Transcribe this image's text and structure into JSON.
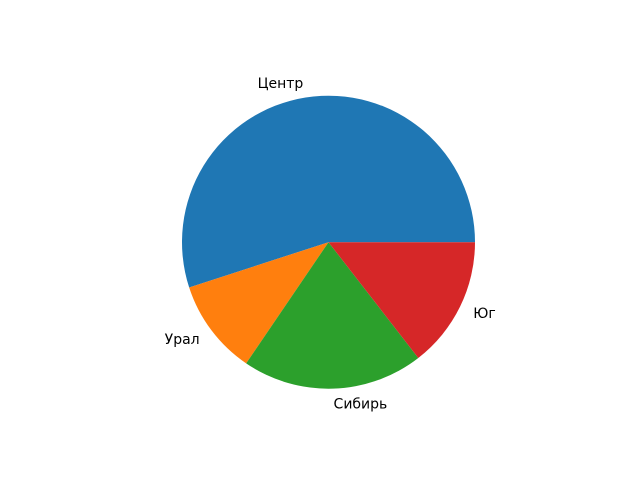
{
  "figure": {
    "background": "#ffffff"
  },
  "chart_data": {
    "type": "pie",
    "labels": [
      "Центр",
      "Урал",
      "Сибирь",
      "Юг"
    ],
    "values": [
      55,
      10.5,
      20,
      14.5
    ],
    "colors": [
      "#1f77b4",
      "#ff7f0e",
      "#2ca02c",
      "#d62728"
    ],
    "start_angle_deg": 0,
    "direction": "counterclockwise",
    "label_distance": 1.1,
    "label_color": "#000000",
    "legend_position": "none",
    "title": ""
  }
}
